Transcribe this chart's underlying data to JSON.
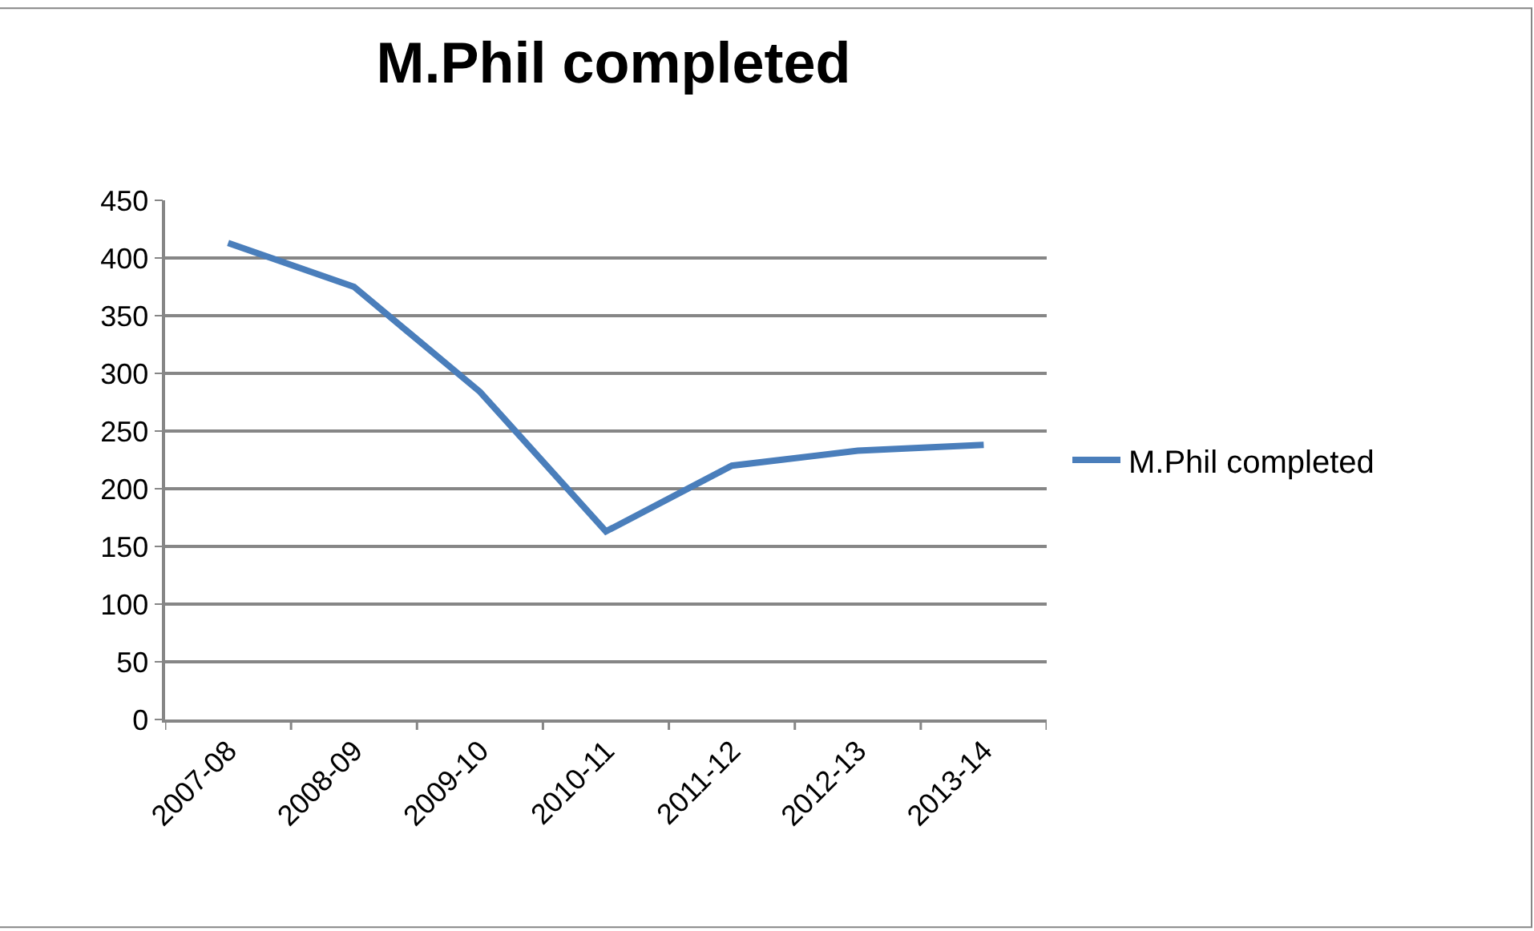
{
  "chart_data": {
    "type": "line",
    "title": "M.Phil completed",
    "categories": [
      "2007-08",
      "2008-09",
      "2009-10",
      "2010-11",
      "2011-12",
      "2012-13",
      "2013-14"
    ],
    "series": [
      {
        "name": "M.Phil completed",
        "color": "#4a7ebb",
        "values": [
          413,
          375,
          284,
          163,
          220,
          233,
          238
        ]
      }
    ],
    "ylim": [
      0,
      450
    ],
    "yticks": [
      0,
      50,
      100,
      150,
      200,
      250,
      300,
      350,
      400,
      450
    ],
    "grid": "y",
    "legend": "right",
    "marker": "none",
    "line_style": "solid"
  }
}
